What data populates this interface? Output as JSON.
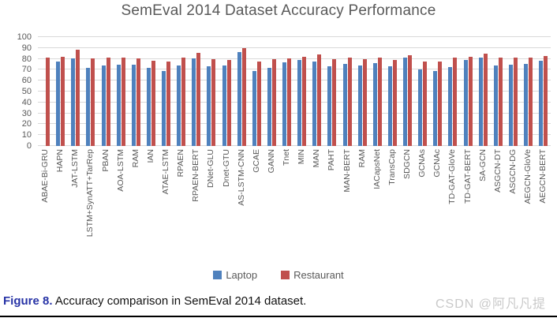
{
  "title": "SemEval 2014 Dataset Accuracy Performance",
  "legend": {
    "items": [
      {
        "label": "Laptop",
        "color": "#4f81bd"
      },
      {
        "label": "Restaurant",
        "color": "#c0504d"
      }
    ]
  },
  "caption": {
    "prefix": "Figure 8.",
    "text": " Accuracy comparison in SemEval 2014 dataset."
  },
  "watermark": "CSDN @阿凡凡提",
  "colors": {
    "laptop": "#4f81bd",
    "restaurant": "#c0504d",
    "gridline": "#d9d9d9",
    "axis_text": "#595959",
    "title_text": "#595959",
    "caption_accent": "#2733a6",
    "watermark_text": "#c9c9c9"
  },
  "chart_data": {
    "type": "bar",
    "title": "SemEval 2014 Dataset Accuracy Performance",
    "xlabel": "",
    "ylabel": "",
    "ylim": [
      0,
      100
    ],
    "yticks": [
      0,
      10,
      20,
      30,
      40,
      50,
      60,
      70,
      80,
      90,
      100
    ],
    "grid": true,
    "legend_position": "bottom",
    "categories": [
      "ABAE-Bi-GRU",
      "HAPN",
      "JAT-LSTM",
      "LSTM+SynATT+TarRep",
      "PBAN",
      "AOA-LSTM",
      "RAM",
      "IAN",
      "ATAE-LSTM",
      "RPAEN",
      "RPAEN-BERT",
      "DNet-GLU",
      "Dnet-GTU",
      "AS-LSTM-CNN",
      "GCAE",
      "GANN",
      "Tnet",
      "MIN",
      "MAN",
      "PAHT",
      "MAN-BERT",
      "RAM",
      "IACapsNet",
      "TransCap",
      "SDGCN",
      "GCNAs",
      "GCNAc",
      "TD-GAT-GloVe",
      "TD-GAT-BERT",
      "SA-GCN",
      "ASGCN-DT",
      "ASGCN-DG",
      "AEGCN-GloVe",
      "AEGCN-BERT"
    ],
    "series": [
      {
        "name": "Laptop",
        "color": "#4f81bd",
        "values": [
          null,
          77.3,
          80.1,
          71.9,
          74.1,
          74.5,
          74.5,
          72.1,
          68.7,
          74.0,
          80.4,
          73.0,
          73.9,
          86.4,
          69.1,
          71.9,
          76.5,
          79.0,
          77.5,
          73.5,
          75.1,
          74.2,
          76.0,
          73.0,
          81.0,
          70.0,
          69.0,
          72.5,
          79.0,
          81.0,
          74.0,
          75.0,
          75.5,
          78.0
        ]
      },
      {
        "name": "Restaurant",
        "color": "#c0504d",
        "values": [
          81.0,
          82.2,
          88.3,
          80.6,
          81.2,
          81.2,
          80.2,
          78.6,
          77.2,
          81.0,
          85.2,
          79.5,
          78.9,
          90.0,
          77.3,
          79.8,
          80.7,
          82.0,
          84.0,
          80.0,
          81.4,
          79.5,
          81.2,
          79.3,
          83.0,
          77.8,
          77.5,
          81.0,
          82.0,
          85.0,
          81.0,
          81.0,
          81.2,
          82.5
        ]
      }
    ]
  }
}
